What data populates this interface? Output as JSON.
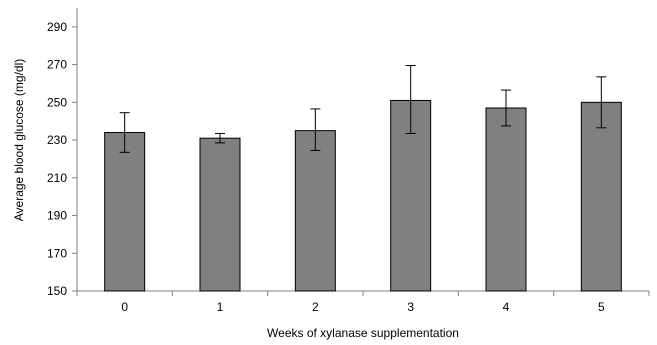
{
  "chart_data": {
    "type": "bar",
    "xlabel": "Weeks of xylanase supplementation",
    "ylabel": "Average blood glucose (mg/dl)",
    "categories": [
      "0",
      "1",
      "2",
      "3",
      "4",
      "5"
    ],
    "values": [
      234,
      231,
      235,
      251,
      247,
      250
    ],
    "error_bars": {
      "upper": [
        244.5,
        233.5,
        246.5,
        269.5,
        256.5,
        263.5
      ],
      "lower": [
        223.5,
        228.5,
        224.5,
        233.5,
        237.5,
        236.5
      ]
    },
    "ylim": [
      150,
      300
    ],
    "yticks": [
      150,
      170,
      190,
      210,
      230,
      250,
      270,
      290
    ],
    "grid": false,
    "legend": "none",
    "bar_color": "#808080",
    "bar_edge_color": "#000000",
    "axis_color": "#808080"
  }
}
